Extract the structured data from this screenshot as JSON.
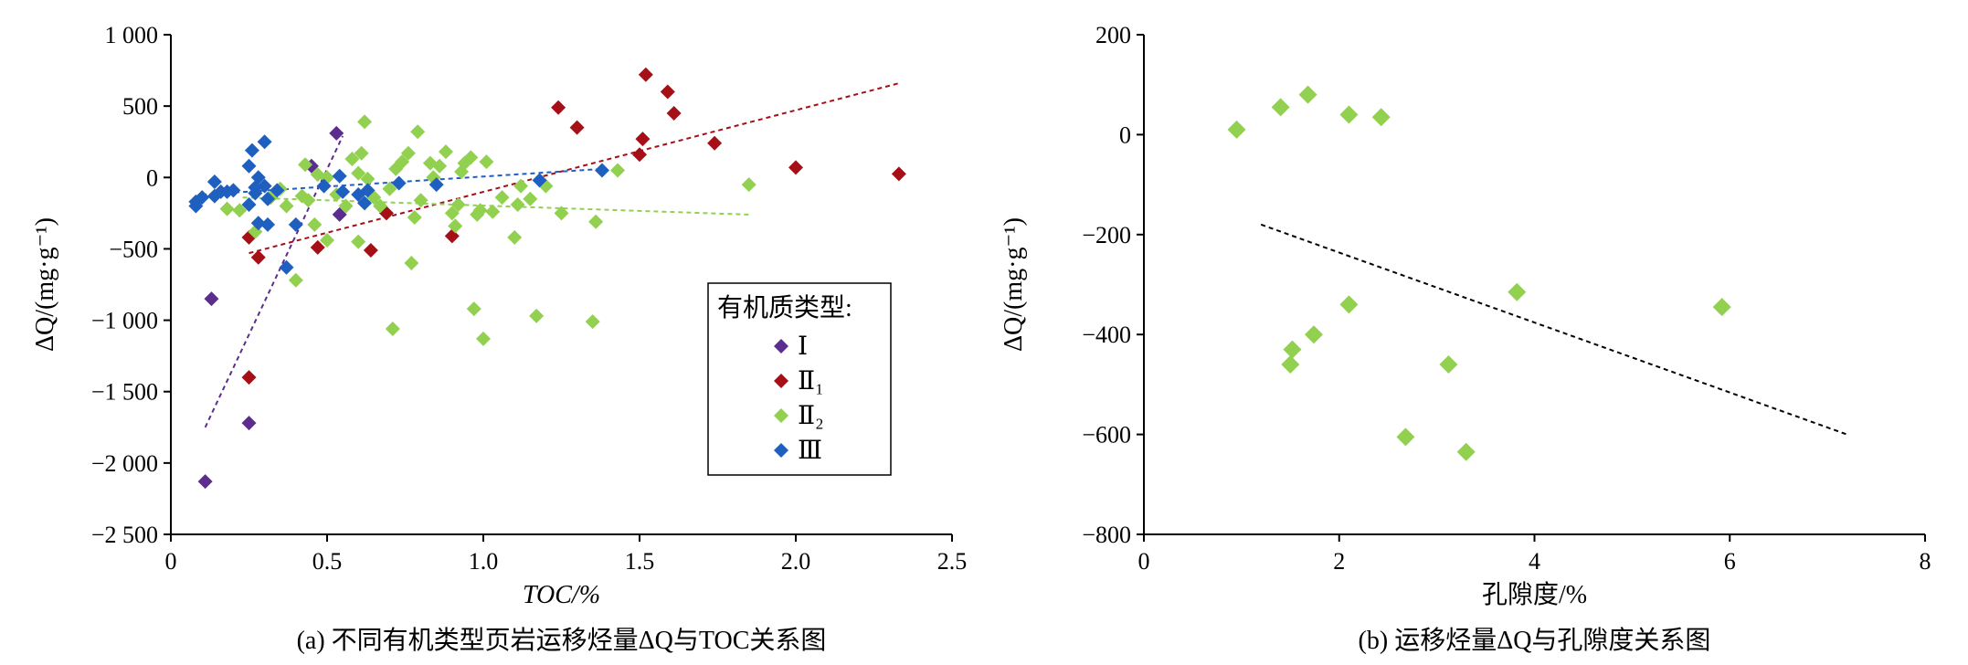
{
  "chart_data": [
    {
      "type": "scatter",
      "ylabel": "ΔQ/(mg·g⁻¹)",
      "xlabel": "TOC/%",
      "caption": "(a) 不同有机类型页岩运移烃量ΔQ与TOC关系图",
      "xlim": [
        0,
        2.5
      ],
      "ylim": [
        -2500,
        1000
      ],
      "xticks": [
        0,
        0.5,
        1.0,
        1.5,
        2.0,
        2.5
      ],
      "xtick_labels": [
        "0",
        "0.5",
        "1.0",
        "1.5",
        "2.0",
        "2.5"
      ],
      "yticks": [
        1000,
        500,
        0,
        -500,
        -1000,
        -1500,
        -2000,
        -2500
      ],
      "ytick_labels": [
        "1 000",
        "500",
        "0",
        "−500",
        "−1 000",
        "−1 500",
        "−2 000",
        "−2 500"
      ],
      "legend_title": "有机质类型:",
      "legend_position": "right-center",
      "series": [
        {
          "name": "Ⅰ",
          "color": "#5b2d8e",
          "trend": [
            [
              0.11,
              -1750
            ],
            [
              0.55,
              290
            ]
          ],
          "points": [
            [
              0.13,
              -850
            ],
            [
              0.11,
              -2130
            ],
            [
              0.25,
              -1720
            ],
            [
              0.53,
              310
            ],
            [
              0.54,
              -260
            ],
            [
              0.45,
              80
            ]
          ]
        },
        {
          "name": "Ⅱ₁",
          "color": "#a50f15",
          "trend": [
            [
              0.25,
              -530
            ],
            [
              2.33,
              660
            ]
          ],
          "points": [
            [
              0.25,
              -420
            ],
            [
              0.25,
              -1400
            ],
            [
              0.28,
              -560
            ],
            [
              0.47,
              -490
            ],
            [
              0.64,
              -510
            ],
            [
              0.69,
              -250
            ],
            [
              0.9,
              -410
            ],
            [
              1.24,
              490
            ],
            [
              1.3,
              350
            ],
            [
              1.5,
              160
            ],
            [
              1.51,
              270
            ],
            [
              1.52,
              720
            ],
            [
              1.59,
              600
            ],
            [
              1.61,
              450
            ],
            [
              1.74,
              240
            ],
            [
              2.0,
              70
            ],
            [
              2.33,
              25
            ]
          ]
        },
        {
          "name": "Ⅱ₂",
          "color": "#92d050",
          "trend": [
            [
              0.23,
              -140
            ],
            [
              1.85,
              -260
            ]
          ],
          "points": [
            [
              0.18,
              -220
            ],
            [
              0.22,
              -230
            ],
            [
              0.27,
              -380
            ],
            [
              0.32,
              -140
            ],
            [
              0.35,
              -80
            ],
            [
              0.37,
              -200
            ],
            [
              0.4,
              -720
            ],
            [
              0.42,
              -130
            ],
            [
              0.43,
              90
            ],
            [
              0.44,
              -160
            ],
            [
              0.46,
              -330
            ],
            [
              0.47,
              20
            ],
            [
              0.5,
              0
            ],
            [
              0.5,
              -440
            ],
            [
              0.53,
              -120
            ],
            [
              0.56,
              -200
            ],
            [
              0.58,
              130
            ],
            [
              0.6,
              30
            ],
            [
              0.61,
              170
            ],
            [
              0.6,
              -450
            ],
            [
              0.62,
              390
            ],
            [
              0.63,
              -10
            ],
            [
              0.65,
              -140
            ],
            [
              0.67,
              -200
            ],
            [
              0.7,
              -80
            ],
            [
              0.71,
              -1060
            ],
            [
              0.72,
              60
            ],
            [
              0.74,
              110
            ],
            [
              0.76,
              170
            ],
            [
              0.77,
              -600
            ],
            [
              0.78,
              -280
            ],
            [
              0.79,
              320
            ],
            [
              0.8,
              -160
            ],
            [
              0.83,
              100
            ],
            [
              0.84,
              0
            ],
            [
              0.86,
              80
            ],
            [
              0.88,
              180
            ],
            [
              0.9,
              -250
            ],
            [
              0.91,
              -340
            ],
            [
              0.92,
              -190
            ],
            [
              0.93,
              40
            ],
            [
              0.94,
              100
            ],
            [
              0.96,
              140
            ],
            [
              0.97,
              -920
            ],
            [
              0.98,
              -260
            ],
            [
              0.99,
              -230
            ],
            [
              1.0,
              -1130
            ],
            [
              1.01,
              110
            ],
            [
              1.03,
              -240
            ],
            [
              1.06,
              -140
            ],
            [
              1.1,
              -420
            ],
            [
              1.11,
              -190
            ],
            [
              1.12,
              -60
            ],
            [
              1.15,
              -150
            ],
            [
              1.17,
              -970
            ],
            [
              1.2,
              -60
            ],
            [
              1.25,
              -250
            ],
            [
              1.35,
              -1010
            ],
            [
              1.36,
              -310
            ],
            [
              1.43,
              50
            ],
            [
              1.85,
              -50
            ]
          ]
        },
        {
          "name": "Ⅲ",
          "color": "#1f5fbf",
          "trend": [
            [
              0.1,
              -120
            ],
            [
              1.38,
              60
            ]
          ],
          "points": [
            [
              0.08,
              -200
            ],
            [
              0.08,
              -170
            ],
            [
              0.1,
              -140
            ],
            [
              0.14,
              -130
            ],
            [
              0.14,
              -30
            ],
            [
              0.16,
              -100
            ],
            [
              0.18,
              -100
            ],
            [
              0.2,
              -90
            ],
            [
              0.25,
              -190
            ],
            [
              0.25,
              80
            ],
            [
              0.26,
              190
            ],
            [
              0.27,
              -70
            ],
            [
              0.27,
              -110
            ],
            [
              0.28,
              0
            ],
            [
              0.28,
              -320
            ],
            [
              0.3,
              250
            ],
            [
              0.3,
              -60
            ],
            [
              0.31,
              -150
            ],
            [
              0.31,
              -330
            ],
            [
              0.34,
              -90
            ],
            [
              0.37,
              -630
            ],
            [
              0.4,
              -330
            ],
            [
              0.49,
              -60
            ],
            [
              0.54,
              10
            ],
            [
              0.55,
              -100
            ],
            [
              0.6,
              -120
            ],
            [
              0.62,
              -180
            ],
            [
              0.63,
              -90
            ],
            [
              0.73,
              -40
            ],
            [
              0.85,
              -50
            ],
            [
              1.18,
              -20
            ],
            [
              1.38,
              50
            ]
          ]
        }
      ]
    },
    {
      "type": "scatter",
      "ylabel": "ΔQ/(mg·g⁻¹)",
      "xlabel": "孔隙度/%",
      "caption": "(b) 运移烃量ΔQ与孔隙度关系图",
      "xlim": [
        0,
        8
      ],
      "ylim": [
        -800,
        200
      ],
      "xticks": [
        0,
        2,
        4,
        6,
        8
      ],
      "xtick_labels": [
        "0",
        "2",
        "4",
        "6",
        "8"
      ],
      "yticks": [
        200,
        0,
        -200,
        -400,
        -600,
        -800
      ],
      "ytick_labels": [
        "200",
        "0",
        "−200",
        "−400",
        "−600",
        "−800"
      ],
      "series": [
        {
          "color": "#92d050",
          "trend": [
            [
              1.2,
              -180
            ],
            [
              7.2,
              -600
            ]
          ],
          "points": [
            [
              0.95,
              10
            ],
            [
              1.4,
              55
            ],
            [
              1.68,
              80
            ],
            [
              2.1,
              40
            ],
            [
              2.43,
              35
            ],
            [
              1.5,
              -460
            ],
            [
              1.52,
              -430
            ],
            [
              1.74,
              -400
            ],
            [
              2.1,
              -340
            ],
            [
              2.68,
              -605
            ],
            [
              3.12,
              -460
            ],
            [
              3.3,
              -635
            ],
            [
              3.82,
              -315
            ],
            [
              5.92,
              -345
            ]
          ]
        }
      ]
    }
  ]
}
